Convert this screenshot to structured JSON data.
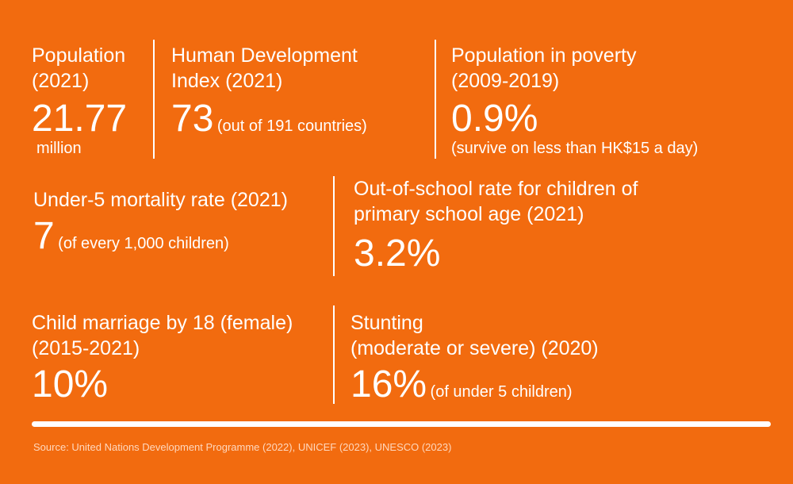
{
  "stats": {
    "population": {
      "label_1": "Population",
      "label_2": "(2021)",
      "value": "21.77",
      "note": "million"
    },
    "hdi": {
      "label_1": "Human Development",
      "label_2": "Index (2021)",
      "value": "73",
      "note": "(out of 191 countries)"
    },
    "poverty": {
      "label_1": "Population in poverty",
      "label_2": "(2009-2019)",
      "value": "0.9%",
      "note": "(survive on less than HK$15 a day)"
    },
    "mortality": {
      "label_1": "Under-5 mortality rate (2021)",
      "value": "7",
      "note": "(of every 1,000 children)"
    },
    "out_of_school": {
      "label_1": "Out-of-school rate for children of",
      "label_2": "primary school age (2021)",
      "value": "3.2%"
    },
    "child_marriage": {
      "label_1": "Child marriage by 18 (female)",
      "label_2": "(2015-2021)",
      "value": "10%"
    },
    "stunting": {
      "label_1": "Stunting",
      "label_2": "(moderate or severe) (2020)",
      "value": "16%",
      "note": "(of under 5 children)"
    }
  },
  "source": "Source: United Nations Development Programme (2022), UNICEF (2023), UNESCO (2023)",
  "colors": {
    "background": "#F26B0F",
    "text": "#FFFFFF",
    "source_text": "#FFD8BE"
  }
}
